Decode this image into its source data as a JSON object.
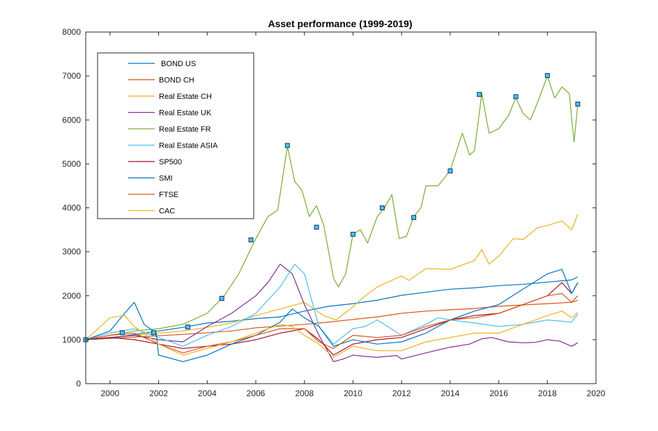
{
  "chart_data": {
    "type": "line",
    "title": "Asset performance (1999-2019)",
    "xlabel": "",
    "ylabel": "",
    "xlim": [
      1999,
      2020
    ],
    "ylim": [
      0,
      8000
    ],
    "xticks": [
      2000,
      2002,
      2004,
      2006,
      2008,
      2010,
      2012,
      2014,
      2016,
      2018,
      2020
    ],
    "yticks": [
      0,
      1000,
      2000,
      3000,
      4000,
      5000,
      6000,
      7000,
      8000
    ],
    "grid": false,
    "legend_position": "top-left",
    "series": [
      {
        "name": " BOND US",
        "color": "#0072BD",
        "points": [
          [
            1999,
            1000
          ],
          [
            2000,
            1030
          ],
          [
            2001,
            1120
          ],
          [
            2002,
            1200
          ],
          [
            2003,
            1280
          ],
          [
            2004,
            1380
          ],
          [
            2005,
            1420
          ],
          [
            2006,
            1480
          ],
          [
            2007,
            1520
          ],
          [
            2008,
            1650
          ],
          [
            2009,
            1760
          ],
          [
            2010,
            1820
          ],
          [
            2011,
            1900
          ],
          [
            2012,
            2010
          ],
          [
            2013,
            2080
          ],
          [
            2014,
            2150
          ],
          [
            2015,
            2180
          ],
          [
            2016,
            2230
          ],
          [
            2017,
            2260
          ],
          [
            2018,
            2310
          ],
          [
            2019,
            2360
          ],
          [
            2019.25,
            2430
          ]
        ]
      },
      {
        "name": "BOND CH",
        "color": "#D95319",
        "points": [
          [
            1999,
            1000
          ],
          [
            2000,
            1030
          ],
          [
            2001,
            1060
          ],
          [
            2002,
            1090
          ],
          [
            2003,
            1120
          ],
          [
            2004,
            1160
          ],
          [
            2005,
            1200
          ],
          [
            2006,
            1270
          ],
          [
            2007,
            1310
          ],
          [
            2008,
            1350
          ],
          [
            2009,
            1400
          ],
          [
            2010,
            1460
          ],
          [
            2011,
            1520
          ],
          [
            2012,
            1600
          ],
          [
            2013,
            1650
          ],
          [
            2014,
            1680
          ],
          [
            2015,
            1710
          ],
          [
            2016,
            1760
          ],
          [
            2017,
            1790
          ],
          [
            2018,
            1820
          ],
          [
            2019,
            1850
          ],
          [
            2019.25,
            2000
          ]
        ]
      },
      {
        "name": "Real Estate CH",
        "color": "#EDB120",
        "points": [
          [
            1999,
            1000
          ],
          [
            2000,
            1050
          ],
          [
            2001,
            1100
          ],
          [
            2002,
            1150
          ],
          [
            2003,
            1200
          ],
          [
            2004,
            1280
          ],
          [
            2005,
            1380
          ],
          [
            2006,
            1550
          ],
          [
            2007,
            1700
          ],
          [
            2008,
            1850
          ],
          [
            2008.8,
            1550
          ],
          [
            2009.3,
            1450
          ],
          [
            2010,
            1750
          ],
          [
            2010.5,
            2000
          ],
          [
            2011,
            2200
          ],
          [
            2012,
            2450
          ],
          [
            2012.3,
            2350
          ],
          [
            2013,
            2620
          ],
          [
            2014,
            2600
          ],
          [
            2014.5,
            2700
          ],
          [
            2015,
            2800
          ],
          [
            2015.3,
            3050
          ],
          [
            2015.6,
            2720
          ],
          [
            2016,
            2900
          ],
          [
            2016.6,
            3300
          ],
          [
            2017,
            3280
          ],
          [
            2017.6,
            3550
          ],
          [
            2018,
            3600
          ],
          [
            2018.6,
            3700
          ],
          [
            2019,
            3500
          ],
          [
            2019.25,
            3850
          ]
        ]
      },
      {
        "name": "Real Estate UK",
        "color": "#7E2F8E",
        "points": [
          [
            1999,
            1000
          ],
          [
            2000,
            1050
          ],
          [
            2001,
            1100
          ],
          [
            2002,
            1000
          ],
          [
            2003,
            950
          ],
          [
            2004,
            1300
          ],
          [
            2005,
            1600
          ],
          [
            2006,
            2000
          ],
          [
            2006.5,
            2300
          ],
          [
            2007,
            2720
          ],
          [
            2007.5,
            2500
          ],
          [
            2008,
            1800
          ],
          [
            2008.6,
            1100
          ],
          [
            2009.2,
            500
          ],
          [
            2009.6,
            560
          ],
          [
            2010,
            650
          ],
          [
            2010.5,
            620
          ],
          [
            2011,
            600
          ],
          [
            2011.8,
            640
          ],
          [
            2012,
            560
          ],
          [
            2013,
            700
          ],
          [
            2014,
            830
          ],
          [
            2014.8,
            900
          ],
          [
            2015.3,
            1020
          ],
          [
            2015.7,
            1050
          ],
          [
            2016.4,
            950
          ],
          [
            2017,
            930
          ],
          [
            2017.5,
            940
          ],
          [
            2018,
            1000
          ],
          [
            2018.5,
            970
          ],
          [
            2019,
            850
          ],
          [
            2019.25,
            930
          ]
        ]
      },
      {
        "name": "Real Estate FR",
        "color": "#77AC30",
        "points": [
          [
            1999,
            1000
          ],
          [
            2000,
            1100
          ],
          [
            2001,
            1200
          ],
          [
            2002,
            1250
          ],
          [
            2003,
            1350
          ],
          [
            2004,
            1600
          ],
          [
            2004.7,
            2000
          ],
          [
            2005.3,
            2500
          ],
          [
            2006,
            3300
          ],
          [
            2006.5,
            3800
          ],
          [
            2006.9,
            3950
          ],
          [
            2007.3,
            5400
          ],
          [
            2007.6,
            4600
          ],
          [
            2007.9,
            4400
          ],
          [
            2008.2,
            3800
          ],
          [
            2008.5,
            4050
          ],
          [
            2008.8,
            3600
          ],
          [
            2009.2,
            2400
          ],
          [
            2009.4,
            2200
          ],
          [
            2009.7,
            2500
          ],
          [
            2010,
            3400
          ],
          [
            2010.3,
            3500
          ],
          [
            2010.6,
            3200
          ],
          [
            2011,
            3800
          ],
          [
            2011.3,
            4000
          ],
          [
            2011.6,
            4300
          ],
          [
            2011.9,
            3300
          ],
          [
            2012.2,
            3350
          ],
          [
            2012.5,
            3800
          ],
          [
            2012.8,
            4000
          ],
          [
            2013,
            4500
          ],
          [
            2013.5,
            4500
          ],
          [
            2014,
            4850
          ],
          [
            2014.5,
            5700
          ],
          [
            2014.8,
            5200
          ],
          [
            2015,
            5300
          ],
          [
            2015.3,
            6600
          ],
          [
            2015.6,
            5700
          ],
          [
            2016,
            5800
          ],
          [
            2016.4,
            6100
          ],
          [
            2016.7,
            6500
          ],
          [
            2017,
            6150
          ],
          [
            2017.3,
            6000
          ],
          [
            2017.6,
            6400
          ],
          [
            2018,
            7000
          ],
          [
            2018.3,
            6500
          ],
          [
            2018.6,
            6750
          ],
          [
            2018.9,
            6600
          ],
          [
            2019.1,
            5500
          ],
          [
            2019.25,
            6350
          ]
        ]
      },
      {
        "name": "Real Estate ASIA",
        "color": "#4DBEEE",
        "points": [
          [
            1999,
            1000
          ],
          [
            2000,
            1150
          ],
          [
            2001,
            1250
          ],
          [
            2002,
            1050
          ],
          [
            2003,
            850
          ],
          [
            2004,
            1100
          ],
          [
            2005,
            1300
          ],
          [
            2006,
            1600
          ],
          [
            2007,
            2200
          ],
          [
            2007.6,
            2720
          ],
          [
            2008,
            2500
          ],
          [
            2008.6,
            1300
          ],
          [
            2009.2,
            900
          ],
          [
            2010,
            1250
          ],
          [
            2010.5,
            1300
          ],
          [
            2011,
            1450
          ],
          [
            2012,
            1100
          ],
          [
            2013,
            1350
          ],
          [
            2013.5,
            1500
          ],
          [
            2014,
            1450
          ],
          [
            2015,
            1380
          ],
          [
            2016,
            1300
          ],
          [
            2017,
            1350
          ],
          [
            2018,
            1450
          ],
          [
            2019,
            1400
          ],
          [
            2019.25,
            1580
          ]
        ]
      },
      {
        "name": "SP500",
        "color": "#A2142F",
        "points": [
          [
            1999,
            1000
          ],
          [
            2000,
            1050
          ],
          [
            2001,
            1000
          ],
          [
            2002,
            900
          ],
          [
            2003,
            800
          ],
          [
            2004,
            850
          ],
          [
            2005,
            900
          ],
          [
            2006,
            1000
          ],
          [
            2007,
            1150
          ],
          [
            2008,
            1250
          ],
          [
            2008.6,
            1000
          ],
          [
            2009.2,
            650
          ],
          [
            2010,
            900
          ],
          [
            2011,
            1000
          ],
          [
            2012,
            1050
          ],
          [
            2013,
            1250
          ],
          [
            2014,
            1450
          ],
          [
            2015,
            1550
          ],
          [
            2016,
            1600
          ],
          [
            2017,
            1800
          ],
          [
            2018,
            2000
          ],
          [
            2018.6,
            2300
          ],
          [
            2019,
            2050
          ],
          [
            2019.25,
            2300
          ]
        ]
      },
      {
        "name": "SMI",
        "color": "#0072BD",
        "points": [
          [
            1999,
            1000
          ],
          [
            2000,
            1200
          ],
          [
            2000.6,
            1600
          ],
          [
            2001,
            1850
          ],
          [
            2001.4,
            1350
          ],
          [
            2001.9,
            1150
          ],
          [
            2002,
            650
          ],
          [
            2003,
            500
          ],
          [
            2004,
            650
          ],
          [
            2005,
            900
          ],
          [
            2006,
            1100
          ],
          [
            2007,
            1400
          ],
          [
            2007.5,
            1700
          ],
          [
            2008,
            1500
          ],
          [
            2008.6,
            1300
          ],
          [
            2009.2,
            850
          ],
          [
            2010,
            1000
          ],
          [
            2011,
            900
          ],
          [
            2012,
            950
          ],
          [
            2013,
            1150
          ],
          [
            2014,
            1450
          ],
          [
            2015,
            1650
          ],
          [
            2016,
            1800
          ],
          [
            2017,
            2150
          ],
          [
            2018,
            2500
          ],
          [
            2018.6,
            2600
          ],
          [
            2019,
            2050
          ],
          [
            2019.25,
            2300
          ]
        ]
      },
      {
        "name": "FTSE",
        "color": "#D95319",
        "points": [
          [
            1999,
            1000
          ],
          [
            2000,
            1100
          ],
          [
            2001,
            1150
          ],
          [
            2002,
            900
          ],
          [
            2003,
            700
          ],
          [
            2004,
            850
          ],
          [
            2005,
            950
          ],
          [
            2006,
            1100
          ],
          [
            2007,
            1250
          ],
          [
            2008,
            1250
          ],
          [
            2008.6,
            950
          ],
          [
            2009.2,
            800
          ],
          [
            2010,
            1100
          ],
          [
            2011,
            1050
          ],
          [
            2012,
            1100
          ],
          [
            2013,
            1300
          ],
          [
            2014,
            1450
          ],
          [
            2015,
            1500
          ],
          [
            2016,
            1600
          ],
          [
            2017,
            1800
          ],
          [
            2018,
            2000
          ],
          [
            2018.6,
            2050
          ],
          [
            2019,
            1850
          ],
          [
            2019.25,
            1900
          ]
        ]
      },
      {
        "name": "CAC",
        "color": "#EDB120",
        "points": [
          [
            1999,
            1000
          ],
          [
            2000,
            1500
          ],
          [
            2000.6,
            1550
          ],
          [
            2001,
            1300
          ],
          [
            2002,
            900
          ],
          [
            2003,
            650
          ],
          [
            2004,
            800
          ],
          [
            2005,
            950
          ],
          [
            2006,
            1150
          ],
          [
            2007,
            1350
          ],
          [
            2007.5,
            1300
          ],
          [
            2008,
            1100
          ],
          [
            2008.6,
            900
          ],
          [
            2009.2,
            600
          ],
          [
            2010,
            850
          ],
          [
            2011,
            750
          ],
          [
            2012,
            750
          ],
          [
            2013,
            950
          ],
          [
            2014,
            1050
          ],
          [
            2015,
            1150
          ],
          [
            2016,
            1150
          ],
          [
            2017,
            1350
          ],
          [
            2018,
            1550
          ],
          [
            2018.6,
            1650
          ],
          [
            2019,
            1500
          ],
          [
            2019.25,
            1620
          ]
        ]
      }
    ],
    "markers": {
      "series": "Real Estate FR",
      "style": "square",
      "fill": "#4DBEEE",
      "edge": "#0D3D66",
      "points": [
        [
          1999,
          1000
        ],
        [
          2000.5,
          1160
        ],
        [
          2001.8,
          1160
        ],
        [
          2003.2,
          1290
        ],
        [
          2004.6,
          1940
        ],
        [
          2005.8,
          3270
        ],
        [
          2007.3,
          5420
        ],
        [
          2008.5,
          3560
        ],
        [
          2010,
          3400
        ],
        [
          2011.2,
          4000
        ],
        [
          2012.5,
          3780
        ],
        [
          2014,
          4840
        ],
        [
          2015.2,
          6580
        ],
        [
          2016.7,
          6530
        ],
        [
          2018,
          7010
        ],
        [
          2019.25,
          6360
        ]
      ]
    }
  }
}
